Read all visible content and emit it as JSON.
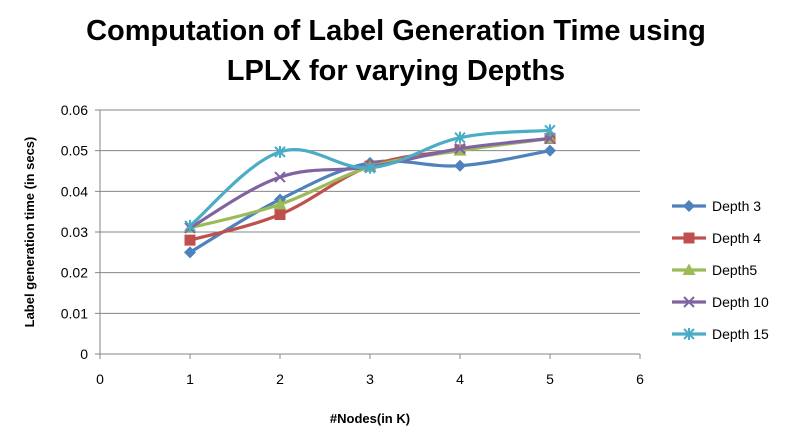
{
  "chart_data": {
    "type": "line",
    "title_line1": "Computation of Label Generation Time using",
    "title_line2": "LPLX for varying Depths",
    "xlabel": "#Nodes(in K)",
    "ylabel": "Label generation time (in secs)",
    "xlim": [
      0,
      6
    ],
    "ylim": [
      0,
      0.06
    ],
    "xticks": [
      0,
      1,
      2,
      3,
      4,
      5,
      6
    ],
    "yticks": [
      0,
      0.01,
      0.02,
      0.03,
      0.04,
      0.05,
      0.06
    ],
    "ytick_labels": [
      "0",
      "0.01",
      "0.02",
      "0.03",
      "0.04",
      "0.05",
      "0.06"
    ],
    "grid": "horizontal",
    "legend_position": "right",
    "smooth": true,
    "x": [
      1,
      2,
      3,
      4,
      5
    ],
    "series": [
      {
        "name": "Depth 3",
        "values": [
          0.025,
          0.038,
          0.047,
          0.0463,
          0.05
        ],
        "color": "#4F81BD",
        "marker": "diamond"
      },
      {
        "name": "Depth 4",
        "values": [
          0.028,
          0.0343,
          0.0462,
          0.0502,
          0.053
        ],
        "color": "#C0504D",
        "marker": "square"
      },
      {
        "name": "Depth5",
        "values": [
          0.031,
          0.0368,
          0.046,
          0.05,
          0.053
        ],
        "color": "#9BBB59",
        "marker": "triangle"
      },
      {
        "name": "Depth 10",
        "values": [
          0.031,
          0.0435,
          0.046,
          0.0505,
          0.053
        ],
        "color": "#8064A2",
        "marker": "x"
      },
      {
        "name": "Depth 15",
        "values": [
          0.0315,
          0.0497,
          0.0458,
          0.0532,
          0.055
        ],
        "color": "#4BACC6",
        "marker": "star"
      }
    ]
  }
}
